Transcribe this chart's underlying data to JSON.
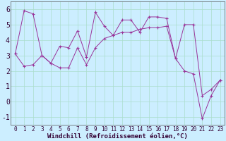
{
  "xlabel": "Windchill (Refroidissement éolien,°C)",
  "background_color": "#cceeff",
  "grid_color": "#aaddcc",
  "line_color": "#993399",
  "xlim": [
    -0.5,
    23.5
  ],
  "ylim": [
    -1.5,
    6.5
  ],
  "yticks": [
    -1,
    0,
    1,
    2,
    3,
    4,
    5,
    6
  ],
  "xticks": [
    0,
    1,
    2,
    3,
    4,
    5,
    6,
    7,
    8,
    9,
    10,
    11,
    12,
    13,
    14,
    15,
    16,
    17,
    18,
    19,
    20,
    21,
    22,
    23
  ],
  "series1_x": [
    0,
    1,
    2,
    3,
    4,
    5,
    6,
    7,
    8,
    9,
    10,
    11,
    12,
    13,
    14,
    15,
    16,
    17,
    18,
    19,
    20,
    21,
    22,
    23
  ],
  "series1_y": [
    3.1,
    5.9,
    5.7,
    3.0,
    2.5,
    3.6,
    3.5,
    4.6,
    2.9,
    5.8,
    4.9,
    4.3,
    5.3,
    5.3,
    4.5,
    5.5,
    5.5,
    5.4,
    2.8,
    5.0,
    5.0,
    0.4,
    0.8,
    1.4
  ],
  "series2_x": [
    0,
    1,
    2,
    3,
    4,
    5,
    6,
    7,
    8,
    9,
    10,
    11,
    12,
    13,
    14,
    15,
    16,
    17,
    18,
    19,
    20,
    21,
    22,
    23
  ],
  "series2_y": [
    3.1,
    2.3,
    2.4,
    3.0,
    2.5,
    2.2,
    2.2,
    3.5,
    2.4,
    3.5,
    4.1,
    4.3,
    4.5,
    4.5,
    4.7,
    4.8,
    4.8,
    4.9,
    2.8,
    2.0,
    1.8,
    -1.1,
    0.4,
    1.4
  ],
  "font_size_xlabel": 6.5,
  "font_size_yticks": 7,
  "font_size_xticks": 5.5
}
